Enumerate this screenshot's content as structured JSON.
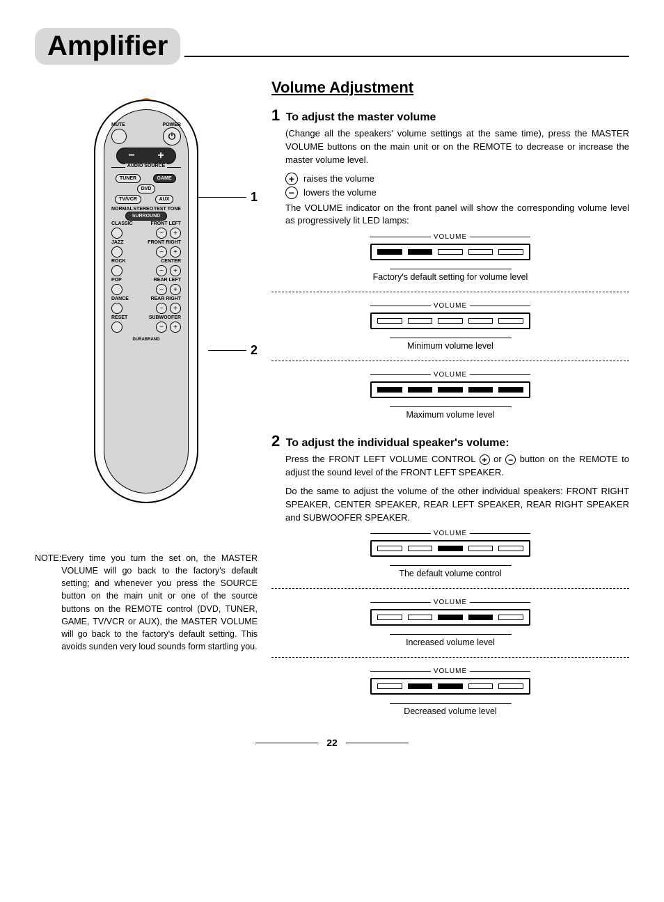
{
  "page": {
    "number": "22"
  },
  "title": "Amplifier",
  "sectionHeading": "Volume Adjustment",
  "remote": {
    "labels": {
      "mute": "MUTE",
      "power": "POWER",
      "audioSource": "AUDIO SOURCE",
      "tuner": "TUNER",
      "game": "GAME",
      "dvd": "DVD",
      "tvvcr": "TV/VCR",
      "aux": "AUX",
      "normal": "NORMAL",
      "stereo": "STEREO",
      "testtone": "TEST TONE",
      "surround": "SURROUND",
      "classic": "CLASSIC",
      "jazz": "JAZZ",
      "rock": "ROCK",
      "pop": "POP",
      "dance": "DANCE",
      "reset": "RESET",
      "frontLeft": "FRONT LEFT",
      "frontRight": "FRONT RIGHT",
      "center": "CENTER",
      "rearLeft": "REAR LEFT",
      "rearRight": "REAR RIGHT",
      "subwoofer": "SUBWOOFER",
      "brand": "DURABRAND"
    },
    "callouts": {
      "one": "1",
      "two": "2"
    }
  },
  "note": {
    "tag": "NOTE: ",
    "body": "Every time you turn the set on, the MASTER VOLUME will go back to the factory's default setting; and whenever you press the SOURCE button on the main unit or one of the source buttons on the REMOTE control (DVD, TUNER, GAME, TV/VCR or AUX), the MASTER VOLUME will go back to the factory's default setting. This avoids sunden very loud sounds form startling you."
  },
  "step1": {
    "num": "1",
    "title": "To adjust the master volume",
    "para1": "(Change all the speakers' volume settings at the same time), press the MASTER VOLUME buttons on the main unit or on the REMOTE to decrease or increase the master volume level.",
    "raise": "raises the volume",
    "lower": "lowers the volume",
    "para2": "The VOLUME indicator on the front panel will show the corresponding volume level as progressively lit LED lamps:",
    "panels": [
      {
        "segments": [
          true,
          true,
          false,
          false,
          false
        ],
        "caption": "Factory's default setting for volume level"
      },
      {
        "segments": [
          false,
          false,
          false,
          false,
          false
        ],
        "caption": "Minimum volume level"
      },
      {
        "segments": [
          true,
          true,
          true,
          true,
          true
        ],
        "caption": "Maximum volume level"
      }
    ]
  },
  "step2": {
    "num": "2",
    "title": "To adjust the individual speaker's volume",
    "para1a": "Press the FRONT LEFT VOLUME CONTROL ",
    "para1b": " or ",
    "para1c": " button on the REMOTE to adjust the sound level of the FRONT LEFT SPEAKER.",
    "para2": "Do the same to adjust the volume of the other individual speakers: FRONT RIGHT SPEAKER, CENTER SPEAKER, REAR LEFT SPEAKER, REAR RIGHT SPEAKER and SUBWOOFER SPEAKER.",
    "panels": [
      {
        "segments": [
          false,
          false,
          true,
          false,
          false
        ],
        "caption": "The default volume control"
      },
      {
        "segments": [
          false,
          false,
          true,
          true,
          false
        ],
        "caption": "Increased volume level"
      },
      {
        "segments": [
          false,
          true,
          true,
          false,
          false
        ],
        "caption": "Decreased volume level"
      }
    ]
  },
  "volumeLabel": "VOLUME",
  "icons": {
    "plus": "+",
    "minus": "−",
    "power": "⏻"
  },
  "colors": {
    "titleTab": "#d8d8d8",
    "remoteBody": "#d6d6d6",
    "ir": "#e07a1a",
    "text": "#000000",
    "background": "#ffffff"
  },
  "typography": {
    "body_pt": 13,
    "heading_pt": 22,
    "title_pt": 40,
    "caption_pt": 12.5
  }
}
